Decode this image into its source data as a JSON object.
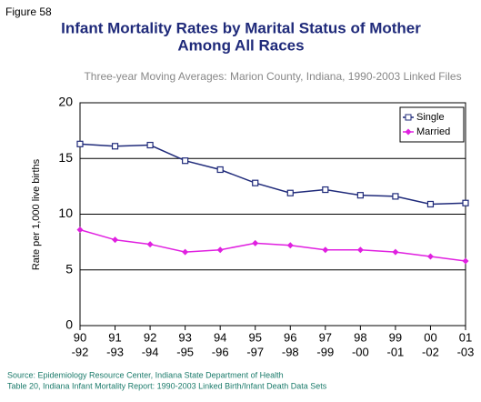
{
  "figure_label": "Figure 58",
  "chart_data": {
    "type": "line",
    "title": [
      "Infant Mortality Rates by Marital Status of Mother",
      "Among All Races"
    ],
    "subtitle": "Three-year Moving Averages: Marion County, Indiana, 1990-2003 Linked Files",
    "y_label": "Rate per 1,000 live births",
    "categories": [
      [
        "90",
        "-92"
      ],
      [
        "91",
        "-93"
      ],
      [
        "92",
        "-94"
      ],
      [
        "93",
        "-95"
      ],
      [
        "94",
        "-96"
      ],
      [
        "95",
        "-97"
      ],
      [
        "96",
        "-98"
      ],
      [
        "97",
        "-99"
      ],
      [
        "98",
        "-00"
      ],
      [
        "99",
        "-01"
      ],
      [
        "00",
        "-02"
      ],
      [
        "01",
        "-03"
      ]
    ],
    "series": [
      {
        "name": "Single",
        "color": "#1f2a7a",
        "marker": "square",
        "values": [
          16.3,
          16.1,
          16.2,
          14.8,
          14.0,
          12.8,
          11.9,
          12.2,
          11.7,
          11.6,
          10.9,
          11.0
        ]
      },
      {
        "name": "Married",
        "color": "#e020e0",
        "marker": "diamond",
        "values": [
          8.6,
          7.7,
          7.3,
          6.6,
          6.8,
          7.4,
          7.2,
          6.8,
          6.8,
          6.6,
          6.2,
          5.8
        ]
      }
    ],
    "ylim": [
      0,
      20
    ],
    "yticks": [
      0,
      5,
      10,
      15,
      20
    ],
    "grid": true,
    "legend": "upper right",
    "source": [
      "Source: Epidemiology Resource Center, Indiana State Department of Health",
      "Table 20, Indiana Infant Mortality Report: 1990-2003 Linked Birth/Infant Death Data Sets"
    ]
  }
}
